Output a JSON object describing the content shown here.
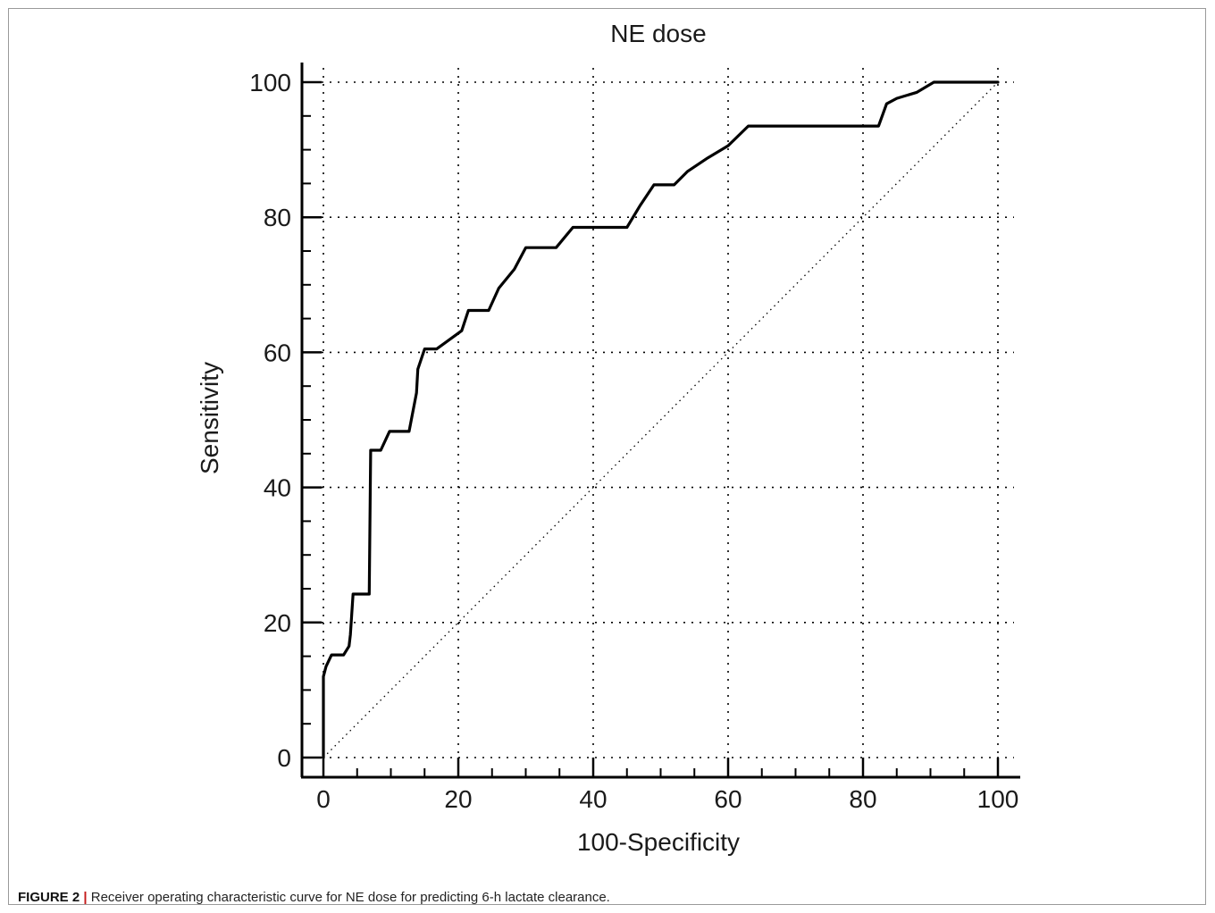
{
  "chart_data": {
    "type": "line",
    "title": "NE dose",
    "xlabel": "100-Specificity",
    "ylabel": "Sensitivity",
    "xlim": [
      0,
      100
    ],
    "ylim": [
      0,
      100
    ],
    "xticks": [
      0,
      20,
      40,
      60,
      80,
      100
    ],
    "yticks": [
      0,
      20,
      40,
      60,
      80,
      100
    ],
    "grid": true,
    "series": [
      {
        "role": "roc-curve",
        "x": [
          0,
          0,
          0.4,
          1.2,
          3,
          3.8,
          4,
          4.4,
          6.8,
          7,
          7.2,
          8.5,
          9.8,
          12.7,
          13.8,
          14,
          15,
          16.8,
          20.5,
          21.5,
          24.5,
          26,
          28.3,
          30,
          34.5,
          37,
          45,
          47,
          49,
          52,
          54,
          57,
          60,
          63,
          73,
          82.3,
          83.5,
          85,
          88,
          90.5,
          92,
          93.5,
          100
        ],
        "y": [
          0,
          12,
          13.5,
          15.2,
          15.2,
          16.5,
          18.2,
          24.2,
          24.2,
          45.5,
          45.5,
          45.5,
          48.3,
          48.3,
          54,
          57.5,
          60.5,
          60.5,
          63.2,
          66.2,
          66.2,
          69.5,
          72.3,
          75.5,
          75.5,
          78.5,
          78.5,
          81.8,
          84.8,
          84.8,
          86.8,
          88.8,
          90.6,
          93.5,
          93.5,
          93.5,
          96.8,
          97.6,
          98.5,
          100,
          100,
          100,
          100
        ]
      },
      {
        "role": "reference-line",
        "x": [
          0,
          100
        ],
        "y": [
          0,
          100
        ]
      }
    ],
    "caption_label": "FIGURE 2",
    "caption_separator": "|",
    "caption_text": "Receiver operating characteristic curve for NE dose for predicting 6-h lactate clearance."
  }
}
